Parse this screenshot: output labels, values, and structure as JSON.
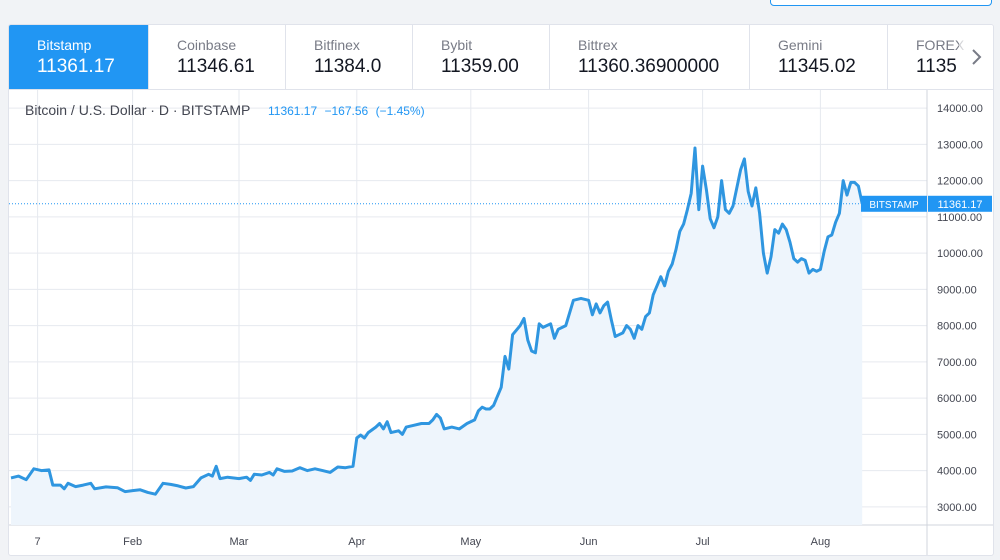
{
  "tabs": [
    {
      "name": "Bitstamp",
      "price": "11361.17",
      "active": true
    },
    {
      "name": "Coinbase",
      "price": "11346.61",
      "active": false
    },
    {
      "name": "Bitfinex",
      "price": "11384.0",
      "active": false
    },
    {
      "name": "Bybit",
      "price": "11359.00",
      "active": false
    },
    {
      "name": "Bittrex",
      "price": "11360.36900000",
      "active": false
    },
    {
      "name": "Gemini",
      "price": "11345.02",
      "active": false
    },
    {
      "name": "FOREX",
      "price": "1135",
      "active": false
    }
  ],
  "legend": {
    "title": "Bitcoin / U.S. Dollar · D · BITSTAMP",
    "last": "11361.17",
    "change": "−167.56",
    "change_pct": "(−1.45%)"
  },
  "price_label": {
    "exchange": "BITSTAMP",
    "value": "11361.17"
  },
  "colors": {
    "accent": "#2196f3",
    "line": "#2f96e0",
    "area": "#eef5fc",
    "grid": "#e6e9ef",
    "text": "#434651"
  },
  "icons": {
    "scroll_right": "chevron-right-icon"
  },
  "chart_data": {
    "type": "area",
    "title": "Bitcoin / U.S. Dollar · D · BITSTAMP",
    "ylim": [
      2500,
      14500
    ],
    "y_ticks": [
      "14000.00",
      "13000.00",
      "12000.00",
      "11000.00",
      "10000.00",
      "9000.00",
      "8000.00",
      "7000.00",
      "6000.00",
      "5000.00",
      "4000.00",
      "3000.00"
    ],
    "x_ticks": [
      {
        "label": "7",
        "day": 7
      },
      {
        "label": "Feb",
        "day": 32
      },
      {
        "label": "Mar",
        "day": 60
      },
      {
        "label": "Apr",
        "day": 91
      },
      {
        "label": "May",
        "day": 121
      },
      {
        "label": "Jun",
        "day": 152
      },
      {
        "label": "Jul",
        "day": 182
      },
      {
        "label": "Aug",
        "day": 213
      }
    ],
    "grid": true,
    "last_value": 11361.17,
    "series": [
      {
        "values": [
          [
            0,
            3800
          ],
          [
            2,
            3850
          ],
          [
            4,
            3750
          ],
          [
            6,
            4050
          ],
          [
            8,
            4000
          ],
          [
            10,
            4020
          ],
          [
            11,
            3600
          ],
          [
            13,
            3600
          ],
          [
            14,
            3500
          ],
          [
            15,
            3650
          ],
          [
            17,
            3560
          ],
          [
            19,
            3600
          ],
          [
            21,
            3650
          ],
          [
            22,
            3500
          ],
          [
            25,
            3550
          ],
          [
            28,
            3530
          ],
          [
            30,
            3420
          ],
          [
            32,
            3450
          ],
          [
            34,
            3470
          ],
          [
            36,
            3400
          ],
          [
            38,
            3350
          ],
          [
            40,
            3650
          ],
          [
            42,
            3620
          ],
          [
            44,
            3580
          ],
          [
            46,
            3520
          ],
          [
            48,
            3560
          ],
          [
            50,
            3800
          ],
          [
            52,
            3900
          ],
          [
            53,
            3850
          ],
          [
            54,
            4120
          ],
          [
            55,
            3780
          ],
          [
            57,
            3820
          ],
          [
            60,
            3780
          ],
          [
            62,
            3820
          ],
          [
            63,
            3730
          ],
          [
            64,
            3900
          ],
          [
            66,
            3880
          ],
          [
            68,
            3950
          ],
          [
            69,
            3880
          ],
          [
            70,
            4050
          ],
          [
            72,
            3980
          ],
          [
            74,
            3990
          ],
          [
            76,
            4080
          ],
          [
            78,
            4000
          ],
          [
            80,
            4050
          ],
          [
            82,
            4000
          ],
          [
            84,
            3950
          ],
          [
            86,
            4100
          ],
          [
            88,
            4080
          ],
          [
            90,
            4120
          ],
          [
            91,
            4900
          ],
          [
            92,
            4980
          ],
          [
            93,
            4900
          ],
          [
            94,
            5050
          ],
          [
            96,
            5200
          ],
          [
            97,
            5300
          ],
          [
            98,
            5150
          ],
          [
            99,
            5350
          ],
          [
            100,
            5050
          ],
          [
            102,
            5100
          ],
          [
            103,
            5000
          ],
          [
            104,
            5200
          ],
          [
            106,
            5250
          ],
          [
            108,
            5300
          ],
          [
            110,
            5300
          ],
          [
            111,
            5400
          ],
          [
            112,
            5550
          ],
          [
            113,
            5450
          ],
          [
            114,
            5150
          ],
          [
            116,
            5200
          ],
          [
            118,
            5150
          ],
          [
            120,
            5300
          ],
          [
            122,
            5400
          ],
          [
            123,
            5650
          ],
          [
            124,
            5750
          ],
          [
            125,
            5700
          ],
          [
            126,
            5700
          ],
          [
            127,
            5800
          ],
          [
            128,
            6050
          ],
          [
            129,
            6300
          ],
          [
            130,
            7150
          ],
          [
            131,
            6800
          ],
          [
            132,
            7750
          ],
          [
            134,
            8000
          ],
          [
            135,
            8200
          ],
          [
            136,
            7600
          ],
          [
            137,
            7300
          ],
          [
            138,
            7250
          ],
          [
            139,
            8050
          ],
          [
            140,
            7950
          ],
          [
            142,
            8050
          ],
          [
            143,
            7650
          ],
          [
            144,
            7900
          ],
          [
            146,
            8000
          ],
          [
            148,
            8700
          ],
          [
            150,
            8750
          ],
          [
            152,
            8700
          ],
          [
            153,
            8300
          ],
          [
            154,
            8600
          ],
          [
            155,
            8350
          ],
          [
            156,
            8550
          ],
          [
            157,
            8650
          ],
          [
            158,
            8150
          ],
          [
            159,
            7700
          ],
          [
            160,
            7750
          ],
          [
            161,
            7800
          ],
          [
            162,
            8000
          ],
          [
            163,
            7900
          ],
          [
            164,
            7650
          ],
          [
            165,
            8000
          ],
          [
            166,
            7900
          ],
          [
            167,
            8250
          ],
          [
            168,
            8350
          ],
          [
            169,
            8850
          ],
          [
            170,
            9100
          ],
          [
            171,
            9350
          ],
          [
            172,
            9100
          ],
          [
            173,
            9500
          ],
          [
            174,
            9700
          ],
          [
            175,
            10100
          ],
          [
            176,
            10600
          ],
          [
            177,
            10800
          ],
          [
            178,
            11200
          ],
          [
            179,
            11650
          ],
          [
            180,
            12900
          ],
          [
            181,
            11200
          ],
          [
            182,
            12400
          ],
          [
            183,
            11750
          ],
          [
            184,
            10950
          ],
          [
            185,
            10700
          ],
          [
            186,
            11000
          ],
          [
            187,
            12000
          ],
          [
            188,
            11200
          ],
          [
            189,
            11100
          ],
          [
            190,
            11300
          ],
          [
            191,
            11800
          ],
          [
            192,
            12300
          ],
          [
            193,
            12600
          ],
          [
            194,
            11700
          ],
          [
            195,
            11300
          ],
          [
            196,
            11800
          ],
          [
            197,
            11100
          ],
          [
            198,
            10000
          ],
          [
            199,
            9450
          ],
          [
            200,
            9900
          ],
          [
            201,
            10650
          ],
          [
            202,
            10550
          ],
          [
            203,
            10800
          ],
          [
            204,
            10650
          ],
          [
            205,
            10300
          ],
          [
            206,
            9850
          ],
          [
            207,
            9750
          ],
          [
            208,
            9850
          ],
          [
            209,
            9800
          ],
          [
            210,
            9450
          ],
          [
            211,
            9550
          ],
          [
            212,
            9500
          ],
          [
            213,
            9550
          ],
          [
            214,
            10050
          ],
          [
            215,
            10450
          ],
          [
            216,
            10500
          ],
          [
            217,
            10850
          ],
          [
            218,
            11100
          ],
          [
            219,
            12000
          ],
          [
            220,
            11600
          ],
          [
            221,
            11950
          ],
          [
            222,
            11950
          ],
          [
            223,
            11850
          ],
          [
            224,
            11361.17
          ]
        ]
      }
    ]
  }
}
